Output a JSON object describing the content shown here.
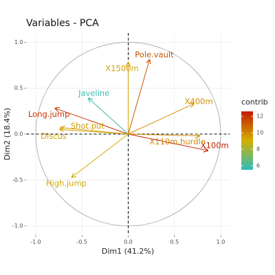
{
  "chart_data": {
    "type": "arrow",
    "title": "Variables - PCA",
    "x_label": "Dim1 (41.2%)",
    "y_label": "Dim2 (18.4%)",
    "categories": [
      "X100m",
      "Long.jump",
      "Shot.put",
      "High.jump",
      "X400m",
      "X110m.hurdle",
      "Discus",
      "Pole.vault",
      "Javeline",
      "X1500m"
    ],
    "x": [
      0.86,
      -0.79,
      -0.73,
      -0.61,
      0.71,
      0.77,
      -0.74,
      0.23,
      -0.43,
      0.0
    ],
    "values": [
      -0.18,
      0.28,
      0.07,
      -0.47,
      0.33,
      -0.02,
      0.05,
      0.81,
      0.39,
      0.78
    ],
    "contrib": [
      12.6,
      12.0,
      9.5,
      9.2,
      9.8,
      10.0,
      9.3,
      11.3,
      5.8,
      9.4
    ],
    "xlim": [
      -1.1,
      1.1
    ],
    "ylim": [
      -1.1,
      1.1
    ],
    "xticks": [
      {
        "value": -1.0,
        "label": "-1.0"
      },
      -0.5,
      {
        "value": 0.0,
        "label": "0.0"
      },
      0.5,
      {
        "value": 1.0,
        "label": "1.0"
      }
    ],
    "yticks": [
      {
        "value": -1.0,
        "label": "-1.0"
      },
      -0.5,
      {
        "value": 0.0,
        "label": "0.0"
      },
      0.5,
      {
        "value": 1.0,
        "label": "1.0"
      }
    ],
    "grid": true,
    "legend": {
      "title": "contrib",
      "clim": [
        5.5,
        12.6
      ],
      "ticks": [
        6,
        8,
        10,
        12
      ],
      "colors": [
        "#2bbcbc",
        "#d4b000",
        "#c41a00"
      ]
    }
  }
}
